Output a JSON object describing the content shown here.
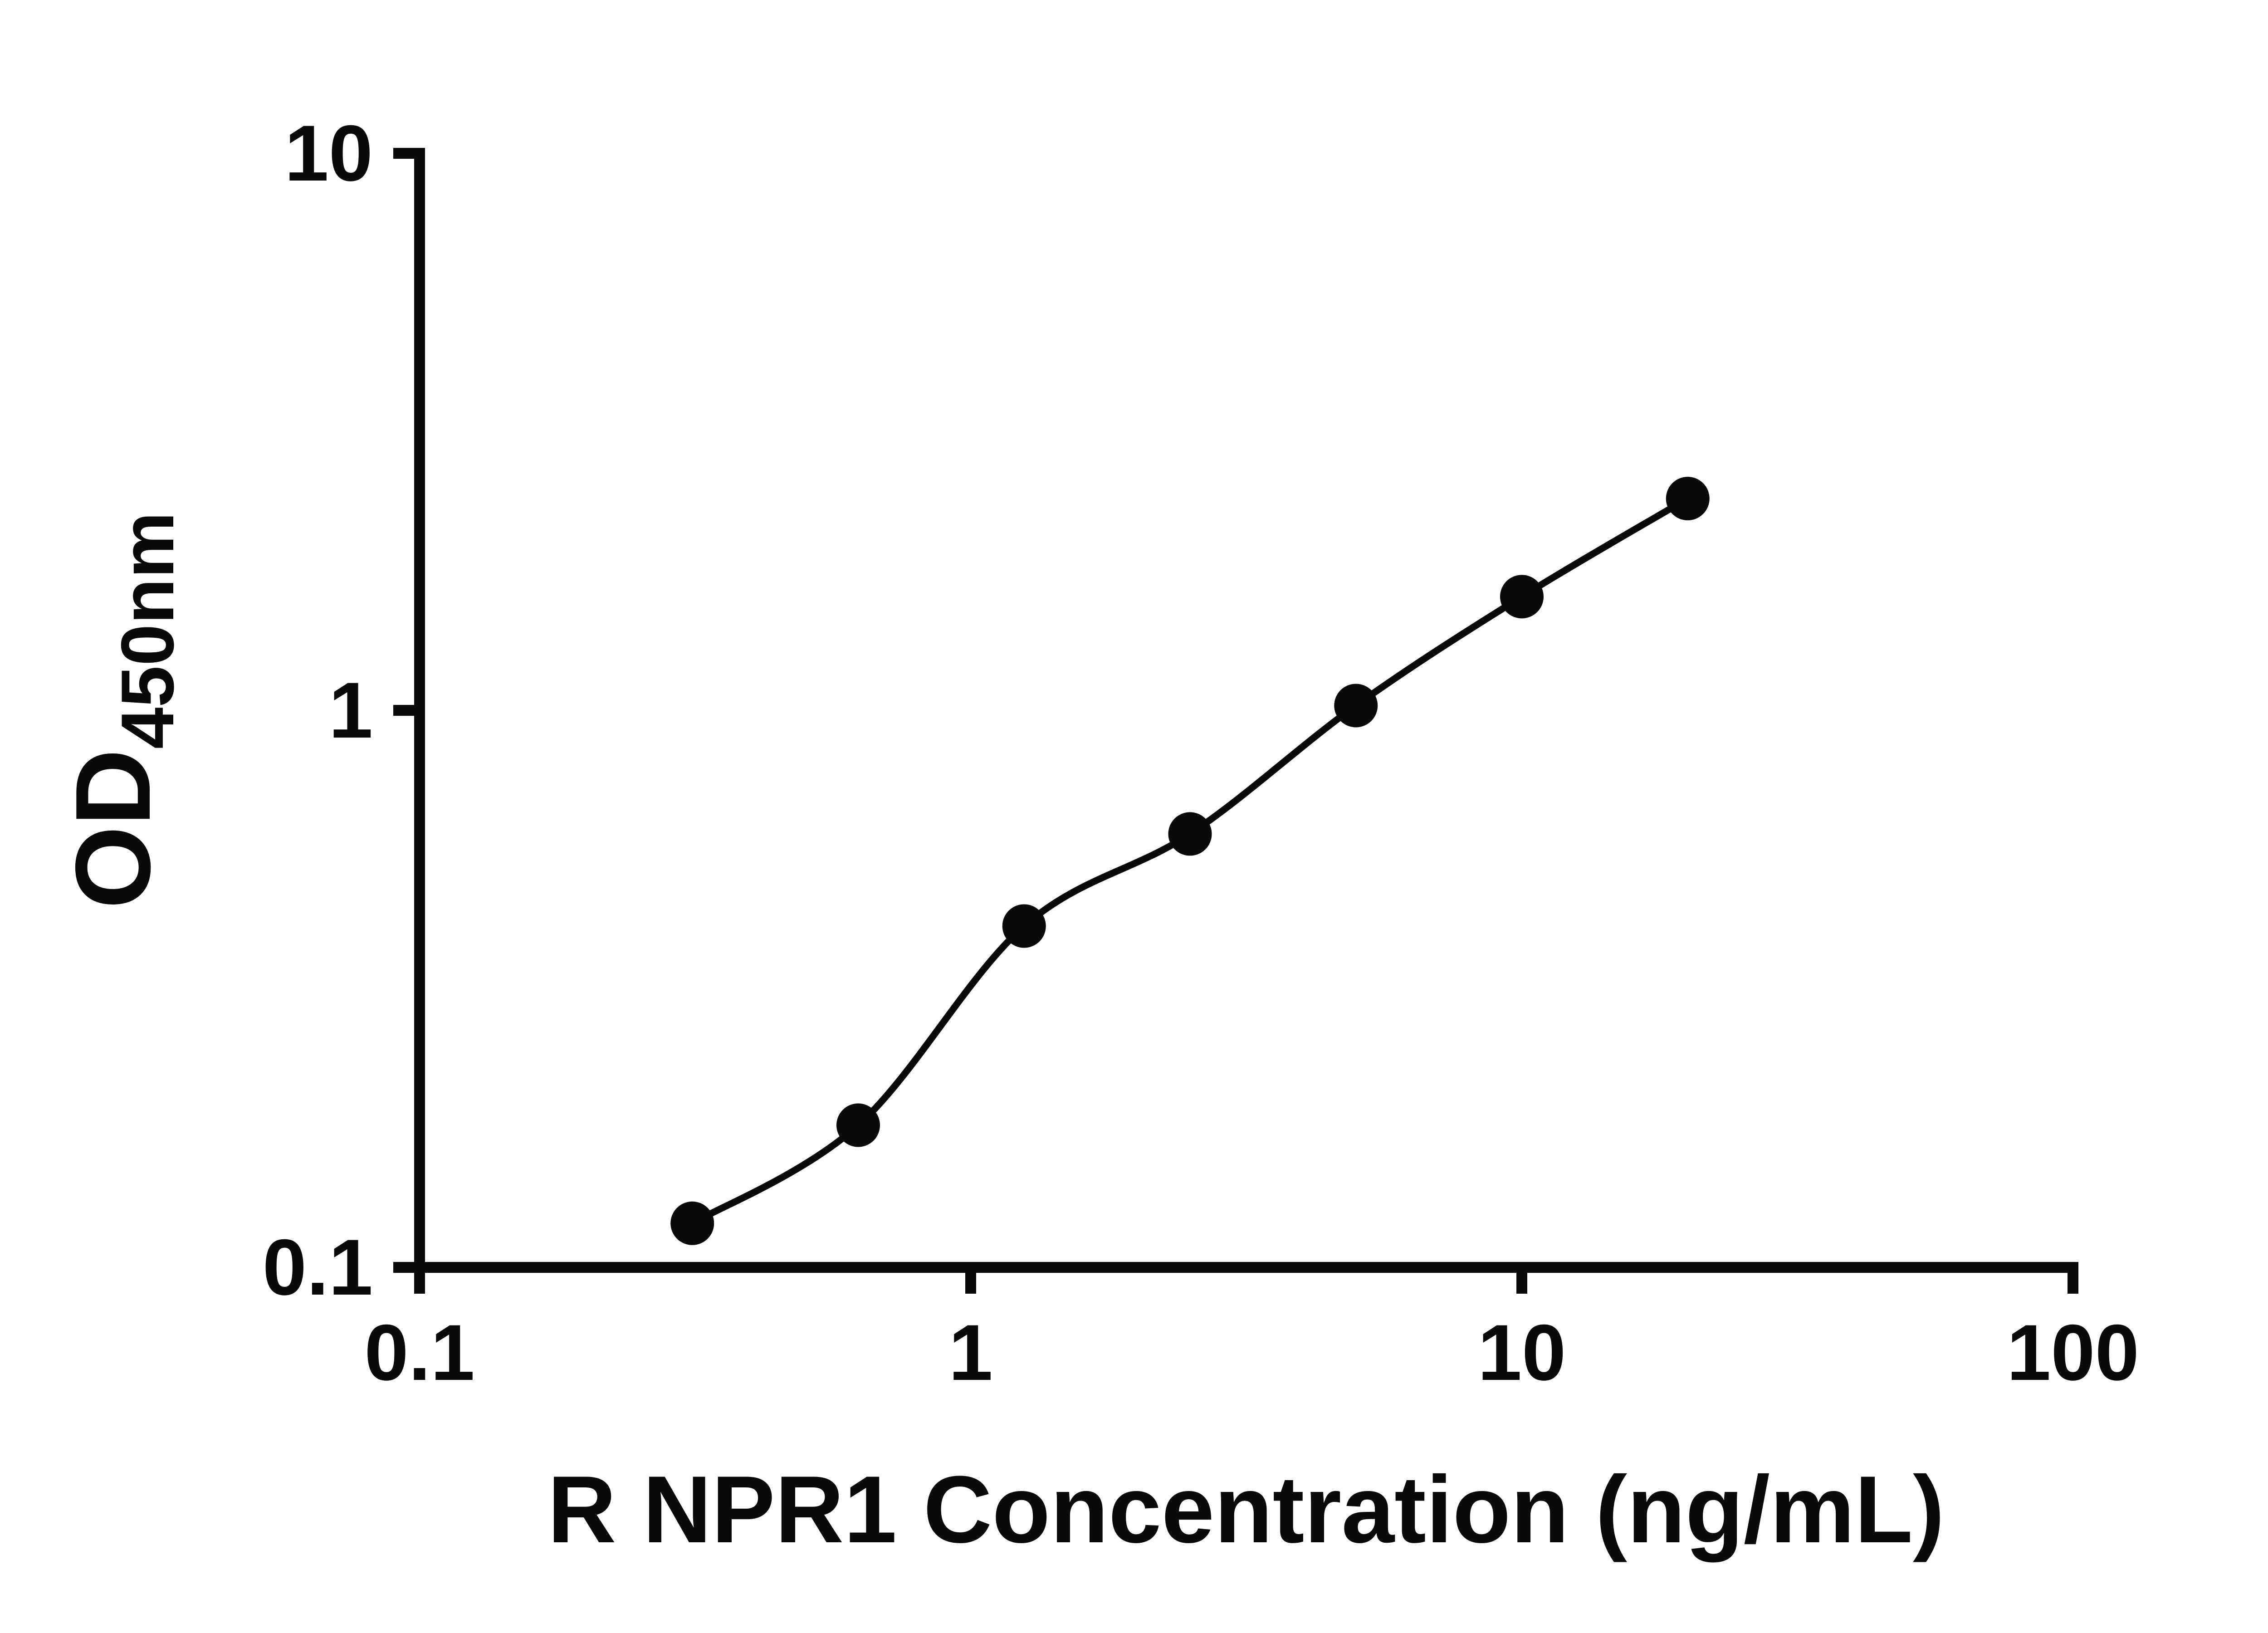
{
  "page": {
    "background": "#ffffff"
  },
  "chart_data": {
    "type": "scatter",
    "title": "",
    "xlabel": "R NPR1 Concentration (ng/mL)",
    "ylabel_main": "OD",
    "ylabel_sub": "450nm",
    "x": [
      0.3125,
      0.625,
      1.25,
      2.5,
      5,
      10,
      20
    ],
    "y": [
      0.12,
      0.18,
      0.41,
      0.6,
      1.02,
      1.6,
      2.4
    ],
    "xscale": "log",
    "yscale": "log",
    "xlim": [
      0.1,
      100
    ],
    "ylim": [
      0.1,
      10
    ],
    "x_tick_values": [
      0.1,
      1,
      10,
      100
    ],
    "x_tick_labels": [
      "0.1",
      "1",
      "10",
      "100"
    ],
    "y_tick_values": [
      0.1,
      1,
      10
    ],
    "y_tick_labels": [
      "0.1",
      "1",
      "10"
    ],
    "grid": false,
    "legend": false,
    "line_color": "#0a0a0a",
    "marker_color": "#0a0a0a",
    "axis_color": "#0a0a0a"
  }
}
